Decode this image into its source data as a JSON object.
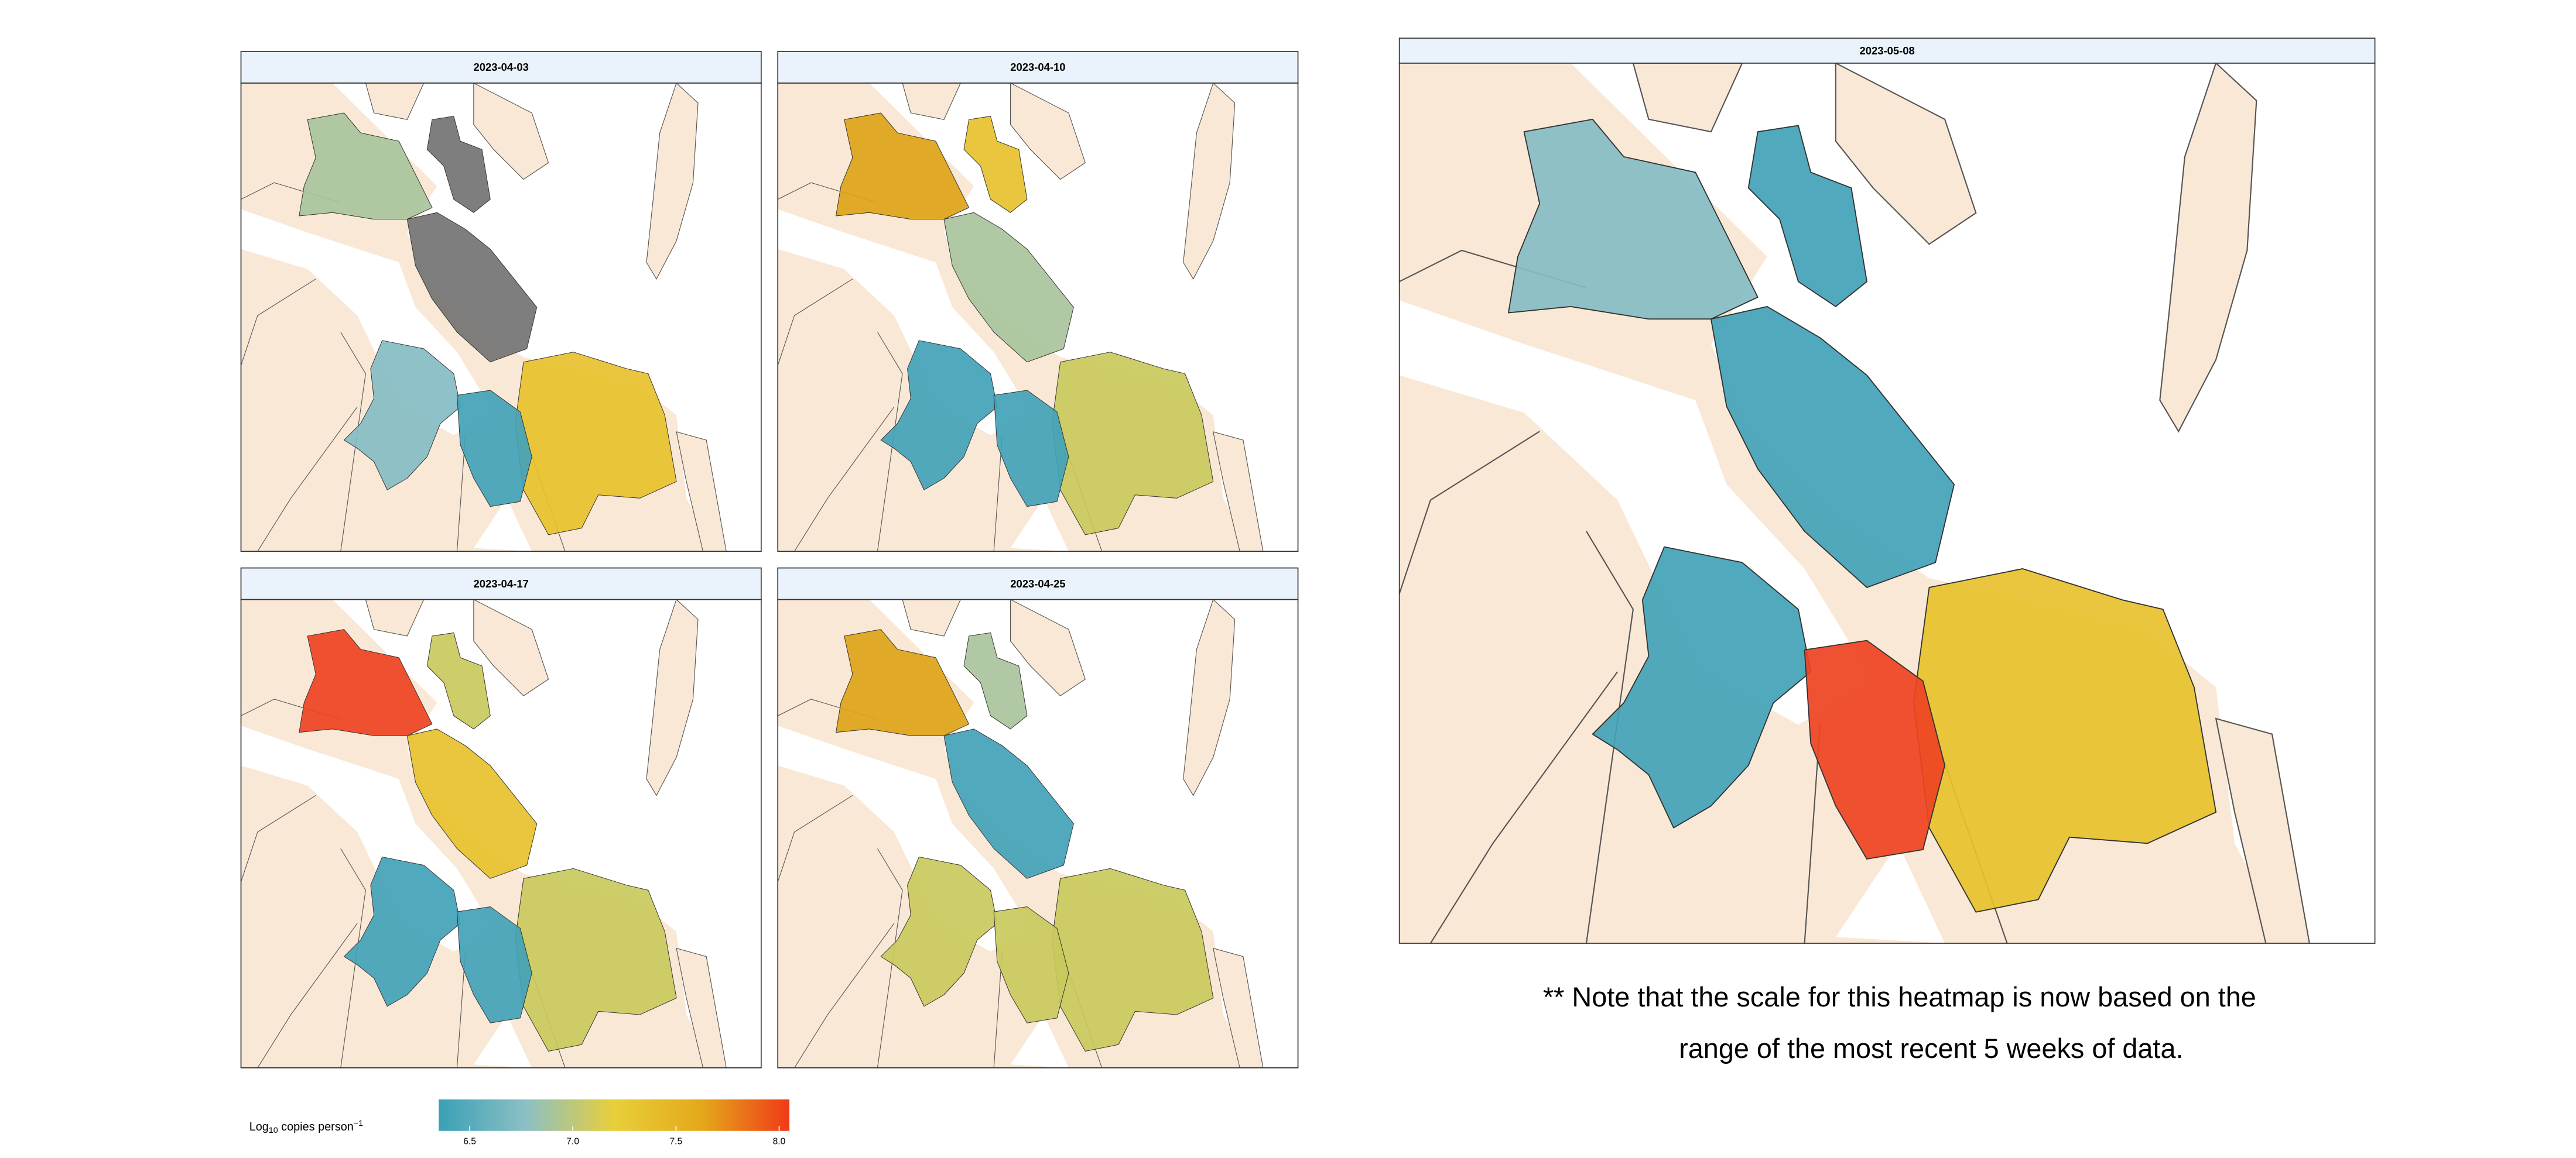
{
  "panels": [
    {
      "date": "2023-04-03"
    },
    {
      "date": "2023-04-10"
    },
    {
      "date": "2023-04-17"
    },
    {
      "date": "2023-04-25"
    },
    {
      "date": "2023-05-08"
    }
  ],
  "note_lines": [
    "** Note that the scale for this heatmap is now based on the",
    "range of the most recent 5 weeks of data."
  ],
  "legend": {
    "title_parts": [
      "Log",
      "10",
      " copies person",
      "−1"
    ],
    "lim": [
      6.35,
      8.05
    ],
    "ticks": [
      6.5,
      {
        "value": 7,
        "label": "7.0"
      },
      7.5,
      {
        "value": 8,
        "label": "8.0"
      }
    ],
    "colors": [
      "#3aa0b6",
      "#8cc0c4",
      "#e8cf3a",
      "#e4a81a",
      "#f03a18"
    ]
  }
}
